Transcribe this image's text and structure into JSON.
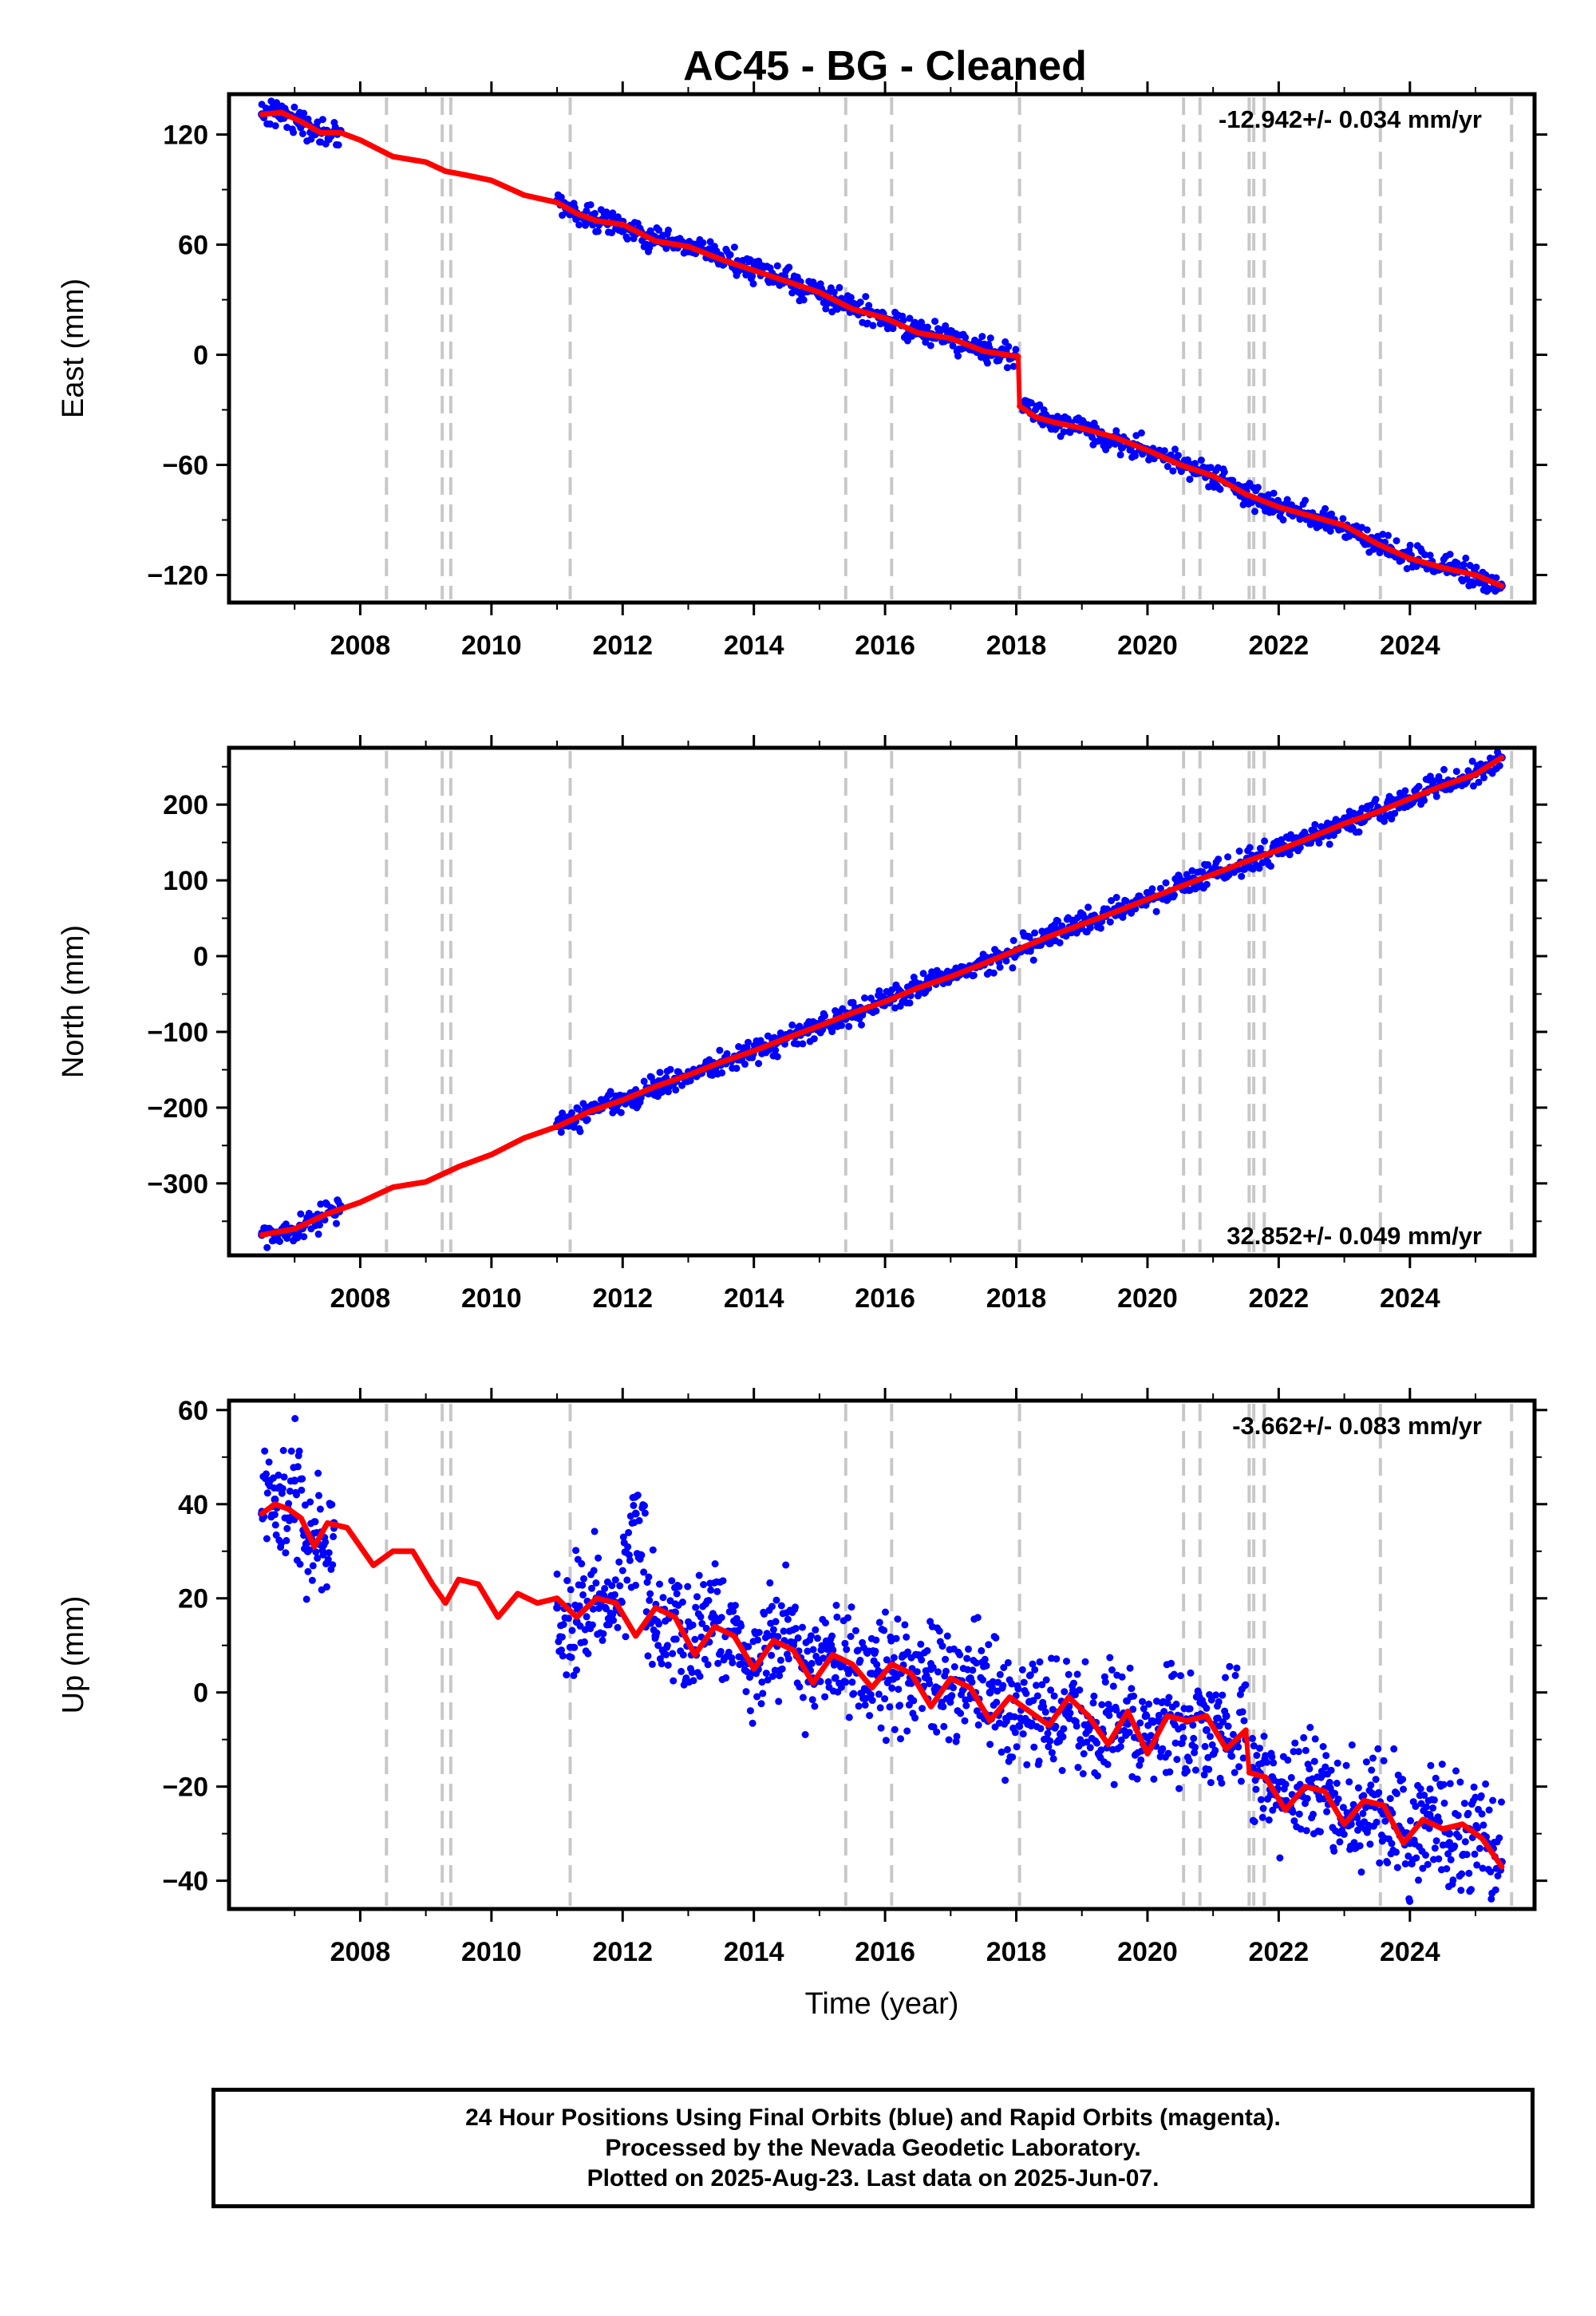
{
  "chart_data": [
    {
      "type": "scatter",
      "title": "AC45  - BG - Cleaned",
      "ylabel": "East (mm)",
      "xlabel": "",
      "xlim": [
        2006.0,
        2025.9
      ],
      "ylim": [
        -135,
        142
      ],
      "yticks": [
        120,
        60,
        0,
        -60,
        -120
      ],
      "ytick_labels": [
        "120",
        "60",
        "0",
        "−60",
        "−120"
      ],
      "xticks": [
        2008,
        2010,
        2012,
        2014,
        2016,
        2018,
        2020,
        2022,
        2024
      ],
      "xtick_labels": [
        "2008",
        "2010",
        "2012",
        "2014",
        "2016",
        "2018",
        "2020",
        "2022",
        "2024"
      ],
      "rate": "-12.942+/- 0.034 mm/yr",
      "rate_position": "top-right",
      "event_lines": [
        2008.4,
        2009.25,
        2009.38,
        2011.2,
        2015.4,
        2016.1,
        2018.05,
        2020.55,
        2020.8,
        2021.55,
        2021.62,
        2021.78,
        2023.55,
        2025.55
      ],
      "series": [
        {
          "color": "#0000ff",
          "segments": [
            {
              "x": [
                2006.5,
                2006.7,
                2006.9,
                2007.1,
                2007.3,
                2007.5,
                2007.7
              ],
              "y": [
                131,
                133,
                131,
                126,
                122,
                121,
                122
              ]
            },
            {
              "x": [
                2011.0,
                2011.3,
                2011.6,
                2011.9,
                2012.2,
                2012.6,
                2013.0,
                2013.5,
                2014.0,
                2014.5,
                2015.0,
                2015.5,
                2016.0,
                2016.5,
                2017.0,
                2017.5,
                2018.0
              ],
              "y": [
                84,
                77,
                73,
                72,
                66,
                61,
                59,
                53,
                47,
                40,
                33,
                26,
                19,
                13,
                9,
                3,
                -1
              ]
            },
            {
              "x": [
                2018.1,
                2018.5,
                2019.0,
                2019.5,
                2020.0,
                2020.5,
                2021.0,
                2021.5,
                2022.0,
                2022.5,
                2023.0,
                2023.5,
                2024.0,
                2024.5,
                2025.0,
                2025.4
              ],
              "y": [
                -27,
                -36,
                -40,
                -46,
                -52,
                -60,
                -66,
                -76,
                -83,
                -88,
                -94,
                -103,
                -111,
                -116,
                -120,
                -126
              ]
            }
          ]
        },
        {
          "color": "#ff0000",
          "segments": [
            {
              "x": [
                2006.5,
                2006.8,
                2007.1,
                2007.4,
                2007.7,
                2008.0,
                2008.5,
                2009.0,
                2009.3,
                2009.6,
                2010.0,
                2010.5,
                2011.0,
                2011.3,
                2011.6,
                2012.0,
                2012.5,
                2013.0,
                2013.5,
                2014.0,
                2014.5,
                2015.0,
                2015.5,
                2016.0,
                2016.5,
                2017.0,
                2017.5,
                2018.03
              ],
              "y": [
                131,
                132,
                127,
                121,
                121,
                117,
                108,
                105,
                100,
                98,
                95,
                87,
                83,
                77,
                73,
                71,
                62,
                59,
                52,
                46,
                40,
                34,
                25,
                20,
                12,
                9,
                2,
                -1
              ]
            },
            {
              "x": [
                2018.05,
                2018.3,
                2018.6,
                2019.0,
                2019.5,
                2020.0,
                2020.5,
                2021.0,
                2021.5,
                2022.0,
                2022.5,
                2023.0,
                2023.5,
                2024.0,
                2024.5,
                2025.0,
                2025.4
              ],
              "y": [
                -28,
                -34,
                -37,
                -40,
                -45,
                -52,
                -60,
                -66,
                -76,
                -83,
                -88,
                -93,
                -103,
                -111,
                -116,
                -120,
                -126
              ]
            }
          ]
        }
      ]
    },
    {
      "type": "scatter",
      "title": "",
      "ylabel": "North (mm)",
      "xlabel": "",
      "xlim": [
        2006.0,
        2025.9
      ],
      "ylim": [
        -395,
        275
      ],
      "yticks": [
        200,
        100,
        0,
        -100,
        -200,
        -300
      ],
      "ytick_labels": [
        "200",
        "100",
        "0",
        "−100",
        "−200",
        "−300"
      ],
      "xticks": [
        2008,
        2010,
        2012,
        2014,
        2016,
        2018,
        2020,
        2022,
        2024
      ],
      "xtick_labels": [
        "2008",
        "2010",
        "2012",
        "2014",
        "2016",
        "2018",
        "2020",
        "2022",
        "2024"
      ],
      "rate": "32.852+/- 0.049 mm/yr",
      "rate_position": "bottom-right",
      "event_lines": [
        2008.4,
        2009.25,
        2009.38,
        2011.2,
        2015.4,
        2016.1,
        2018.05,
        2020.55,
        2020.8,
        2021.55,
        2021.62,
        2021.78,
        2023.55,
        2025.55
      ],
      "series": [
        {
          "color": "#0000ff",
          "segments": [
            {
              "x": [
                2006.5,
                2006.8,
                2007.1,
                2007.4,
                2007.7
              ],
              "y": [
                -368,
                -364,
                -358,
                -345,
                -330
              ]
            },
            {
              "x": [
                2011.0,
                2011.5,
                2012.0,
                2012.5,
                2013.0,
                2013.5,
                2014.0,
                2014.5,
                2015.0,
                2015.5,
                2016.0,
                2016.5,
                2017.0,
                2017.5,
                2018.0,
                2018.5,
                2019.0,
                2019.5,
                2020.0,
                2020.5,
                2021.0,
                2021.5,
                2022.0,
                2022.5,
                2023.0,
                2023.5,
                2024.0,
                2024.5,
                2025.0,
                2025.4
              ],
              "y": [
                -222,
                -205,
                -190,
                -172,
                -157,
                -140,
                -125,
                -108,
                -92,
                -75,
                -60,
                -42,
                -27,
                -10,
                8,
                26,
                42,
                58,
                75,
                92,
                108,
                125,
                140,
                157,
                175,
                190,
                208,
                225,
                240,
                262
              ]
            }
          ]
        },
        {
          "color": "#ff0000",
          "segments": [
            {
              "x": [
                2006.5,
                2007.0,
                2007.5,
                2008.0,
                2008.5,
                2009.0,
                2009.5,
                2010.0,
                2010.5,
                2011.0,
                2011.5,
                2012.0,
                2012.5,
                2013.0,
                2013.5,
                2014.0,
                2014.5,
                2015.0,
                2015.5,
                2016.0,
                2016.5,
                2017.0,
                2017.5,
                2018.0,
                2018.5,
                2019.0,
                2019.5,
                2020.0,
                2020.5,
                2021.0,
                2021.5,
                2022.0,
                2022.5,
                2023.0,
                2023.5,
                2024.0,
                2024.5,
                2025.0,
                2025.4
              ],
              "y": [
                -368,
                -360,
                -340,
                -325,
                -305,
                -298,
                -278,
                -262,
                -240,
                -225,
                -205,
                -190,
                -172,
                -157,
                -140,
                -125,
                -108,
                -92,
                -75,
                -60,
                -42,
                -27,
                -10,
                8,
                26,
                42,
                58,
                75,
                92,
                108,
                125,
                140,
                157,
                175,
                190,
                208,
                225,
                240,
                262
              ]
            }
          ]
        }
      ]
    },
    {
      "type": "scatter",
      "title": "",
      "ylabel": "Up (mm)",
      "xlabel": "Time (year)",
      "xlim": [
        2006.0,
        2025.9
      ],
      "ylim": [
        -46,
        62
      ],
      "yticks": [
        60,
        40,
        20,
        0,
        -20,
        -40
      ],
      "ytick_labels": [
        "60",
        "40",
        "20",
        "0",
        "−20",
        "−40"
      ],
      "xticks": [
        2008,
        2010,
        2012,
        2014,
        2016,
        2018,
        2020,
        2022,
        2024
      ],
      "xtick_labels": [
        "2008",
        "2010",
        "2012",
        "2014",
        "2016",
        "2018",
        "2020",
        "2022",
        "2024"
      ],
      "rate": "-3.662+/- 0.083 mm/yr",
      "rate_position": "top-right",
      "event_lines": [
        2008.4,
        2009.25,
        2009.38,
        2011.2,
        2015.4,
        2016.1,
        2018.05,
        2020.55,
        2020.8,
        2021.55,
        2021.62,
        2021.78,
        2023.55,
        2025.55
      ],
      "series": [
        {
          "color": "#0000ff",
          "segments": [
            {
              "x": [
                2006.5,
                2006.7,
                2006.9,
                2007.0,
                2007.2,
                2007.4,
                2007.6
              ],
              "y": [
                38,
                41,
                37,
                45,
                30,
                34,
                36
              ]
            },
            {
              "x": [
                2011.0,
                2011.3,
                2011.6,
                2011.9,
                2012.2,
                2012.5,
                2012.8,
                2013.1,
                2013.4,
                2013.7,
                2014.0,
                2014.3,
                2014.6,
                2014.9,
                2015.2,
                2015.5,
                2015.8,
                2016.1,
                2016.4,
                2016.7,
                2017.0,
                2017.3,
                2017.6,
                2017.9,
                2018.2,
                2018.5,
                2018.8,
                2019.1,
                2019.4,
                2019.7,
                2020.0,
                2020.3,
                2020.6,
                2020.9,
                2021.2,
                2021.5
              ],
              "y": [
                18,
                15,
                20,
                19,
                38,
                12,
                17,
                9,
                16,
                13,
                6,
                12,
                10,
                3,
                9,
                5,
                4,
                6,
                2,
                5,
                -1,
                3,
                0,
                -5,
                -2,
                -6,
                -3,
                -8,
                -4,
                -6,
                -12,
                -5,
                -6,
                -8,
                -5,
                -10
              ]
            },
            {
              "x": [
                2021.6,
                2021.9,
                2022.2,
                2022.5,
                2022.8,
                2023.1,
                2023.4,
                2023.7,
                2024.0,
                2024.3,
                2024.6,
                2024.9,
                2025.2,
                2025.4
              ],
              "y": [
                -16,
                -18,
                -25,
                -20,
                -22,
                -28,
                -24,
                -25,
                -32,
                -26,
                -30,
                -29,
                -33,
                -36
              ]
            }
          ]
        },
        {
          "color": "#ff0000",
          "segments": [
            {
              "x": [
                2006.5,
                2006.7,
                2006.9,
                2007.1,
                2007.3,
                2007.5,
                2007.8,
                2008.2,
                2008.5,
                2008.8,
                2009.1,
                2009.3,
                2009.5,
                2009.8,
                2010.1,
                2010.4,
                2010.7,
                2011.0,
                2011.3,
                2011.6,
                2011.9,
                2012.2,
                2012.5,
                2012.8,
                2013.1,
                2013.4,
                2013.7,
                2014.0,
                2014.3,
                2014.6,
                2014.9,
                2015.2,
                2015.5,
                2015.8,
                2016.1,
                2016.4,
                2016.7,
                2017.0,
                2017.3,
                2017.6,
                2017.9,
                2018.2,
                2018.5,
                2018.8,
                2019.1,
                2019.4,
                2019.7,
                2020.0,
                2020.3,
                2020.6,
                2020.9,
                2021.2,
                2021.5
              ],
              "y": [
                38,
                40,
                39,
                37,
                31,
                36,
                35,
                27,
                30,
                30,
                23,
                19,
                24,
                23,
                16,
                21,
                19,
                20,
                16,
                20,
                19,
                12,
                18,
                16,
                8,
                14,
                12,
                5,
                11,
                9,
                2,
                8,
                6,
                1,
                6,
                4,
                -3,
                3,
                1,
                -6,
                -1,
                -4,
                -7,
                -1,
                -5,
                -11,
                -4,
                -13,
                -5,
                -6,
                -5,
                -12,
                -8
              ]
            },
            {
              "x": [
                2021.55,
                2021.8,
                2022.1,
                2022.4,
                2022.7,
                2023.0,
                2023.3,
                2023.6,
                2023.9,
                2024.2,
                2024.5,
                2024.8,
                2025.1,
                2025.4
              ],
              "y": [
                -17,
                -18,
                -25,
                -20,
                -21,
                -28,
                -23,
                -24,
                -32,
                -27,
                -29,
                -28,
                -31,
                -37
              ]
            }
          ]
        }
      ]
    }
  ],
  "footer": {
    "line1": "24 Hour Positions Using Final Orbits (blue) and Rapid Orbits (magenta).",
    "line2": "Processed by the Nevada Geodetic Laboratory.",
    "line3": "Plotted on 2025-Aug-23. Last data on 2025-Jun-07."
  }
}
